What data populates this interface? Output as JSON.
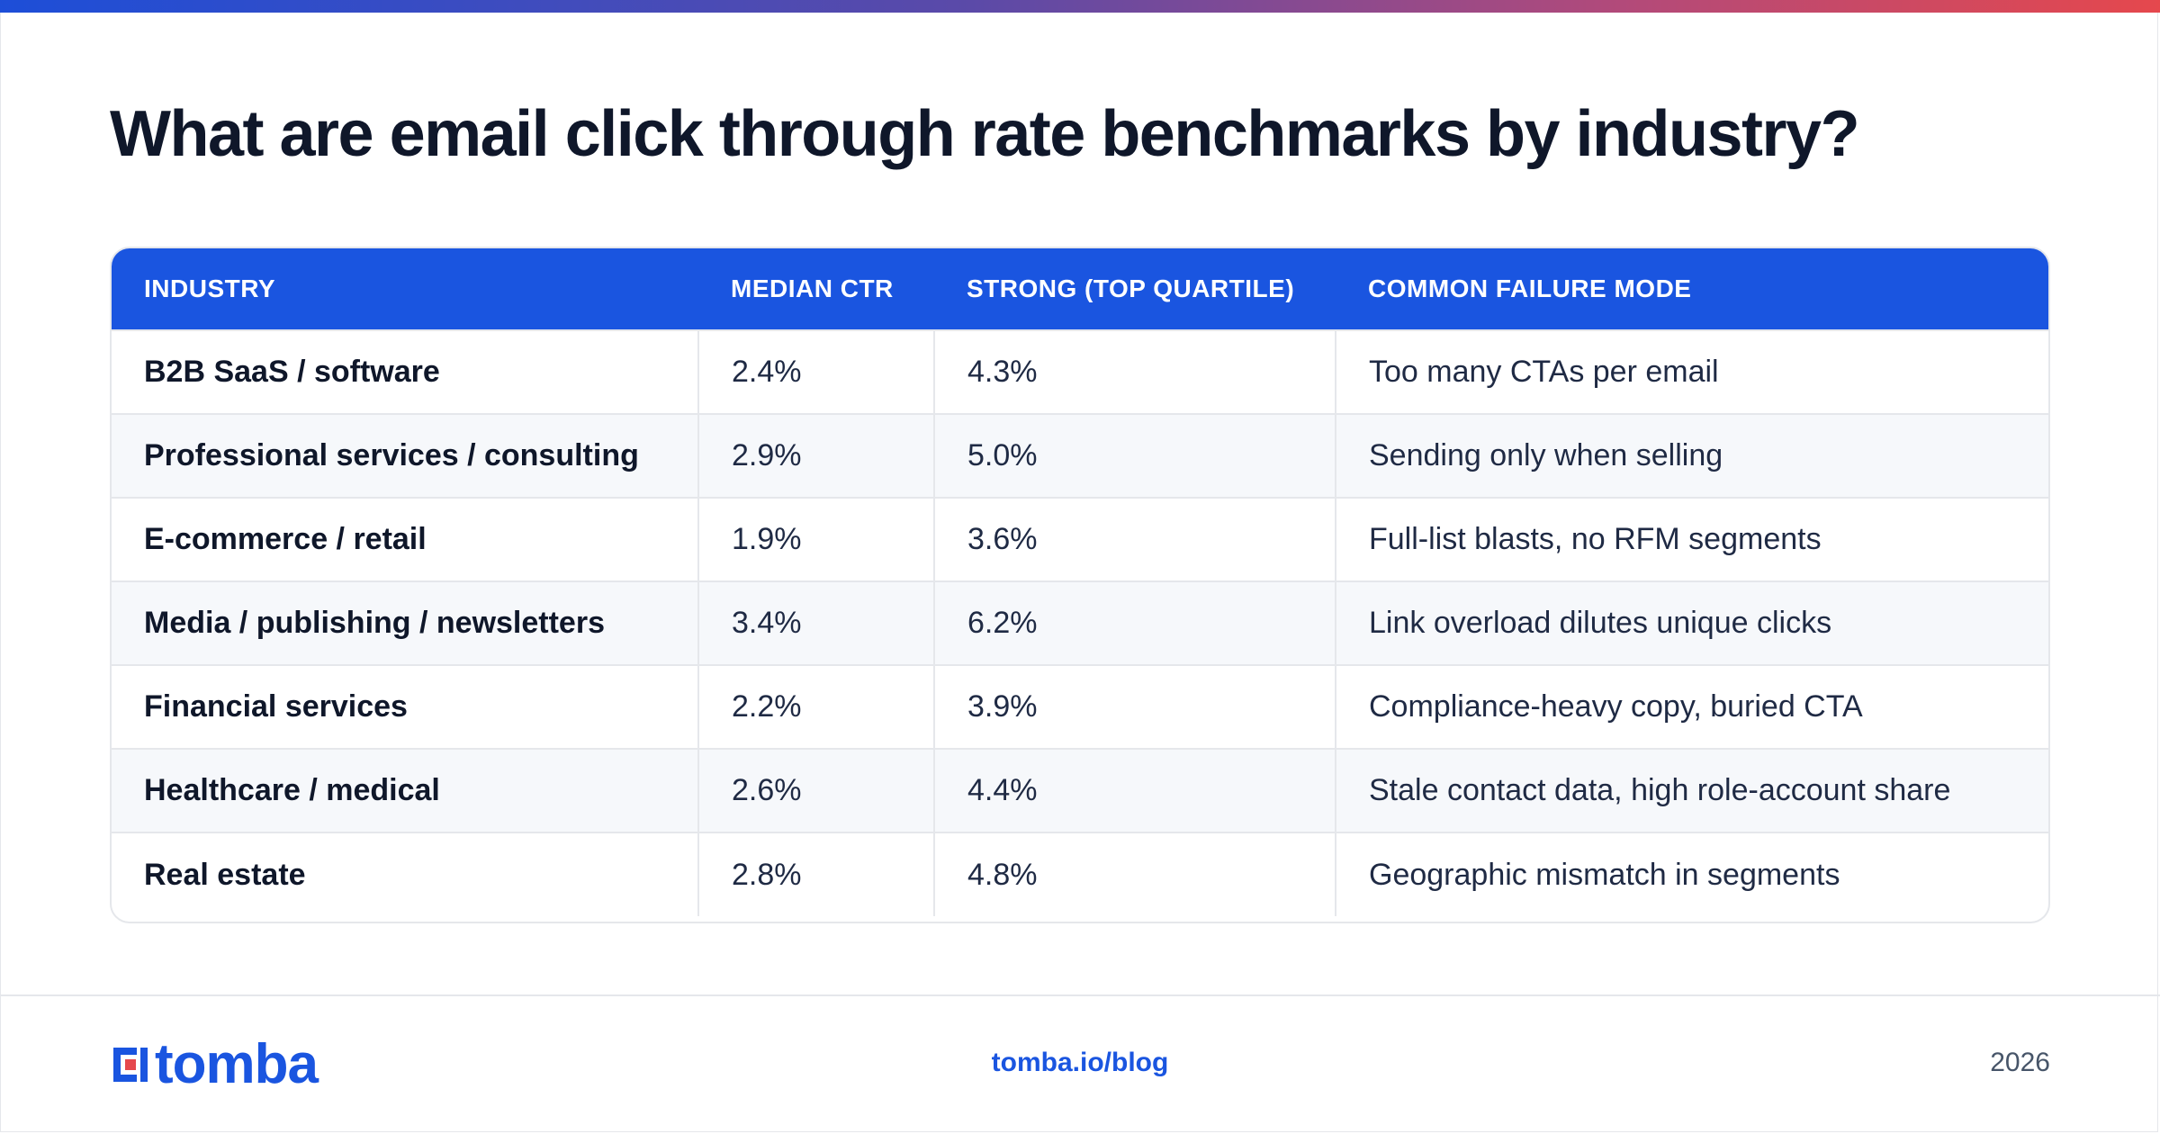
{
  "title": "What are email click through rate benchmarks by industry?",
  "table": {
    "headers": [
      "INDUSTRY",
      "MEDIAN CTR",
      "STRONG (TOP QUARTILE)",
      "COMMON FAILURE MODE"
    ],
    "rows": [
      [
        "B2B SaaS / software",
        "2.4%",
        "4.3%",
        "Too many CTAs per email"
      ],
      [
        "Professional services / consulting",
        "2.9%",
        "5.0%",
        "Sending only when selling"
      ],
      [
        "E-commerce / retail",
        "1.9%",
        "3.6%",
        "Full-list blasts, no RFM segments"
      ],
      [
        "Media / publishing / newsletters",
        "3.4%",
        "6.2%",
        "Link overload dilutes unique clicks"
      ],
      [
        "Financial services",
        "2.2%",
        "3.9%",
        "Compliance-heavy copy, buried CTA"
      ],
      [
        "Healthcare / medical",
        "2.6%",
        "4.4%",
        "Stale contact data, high role-account share"
      ],
      [
        "Real estate",
        "2.8%",
        "4.8%",
        "Geographic mismatch in segments"
      ]
    ]
  },
  "footer": {
    "logo_text": "tomba",
    "link": "tomba.io/blog",
    "year": "2026"
  },
  "colors": {
    "accent": "#1a55e0",
    "logo_red": "#e5484d",
    "title": "#0f172a"
  }
}
